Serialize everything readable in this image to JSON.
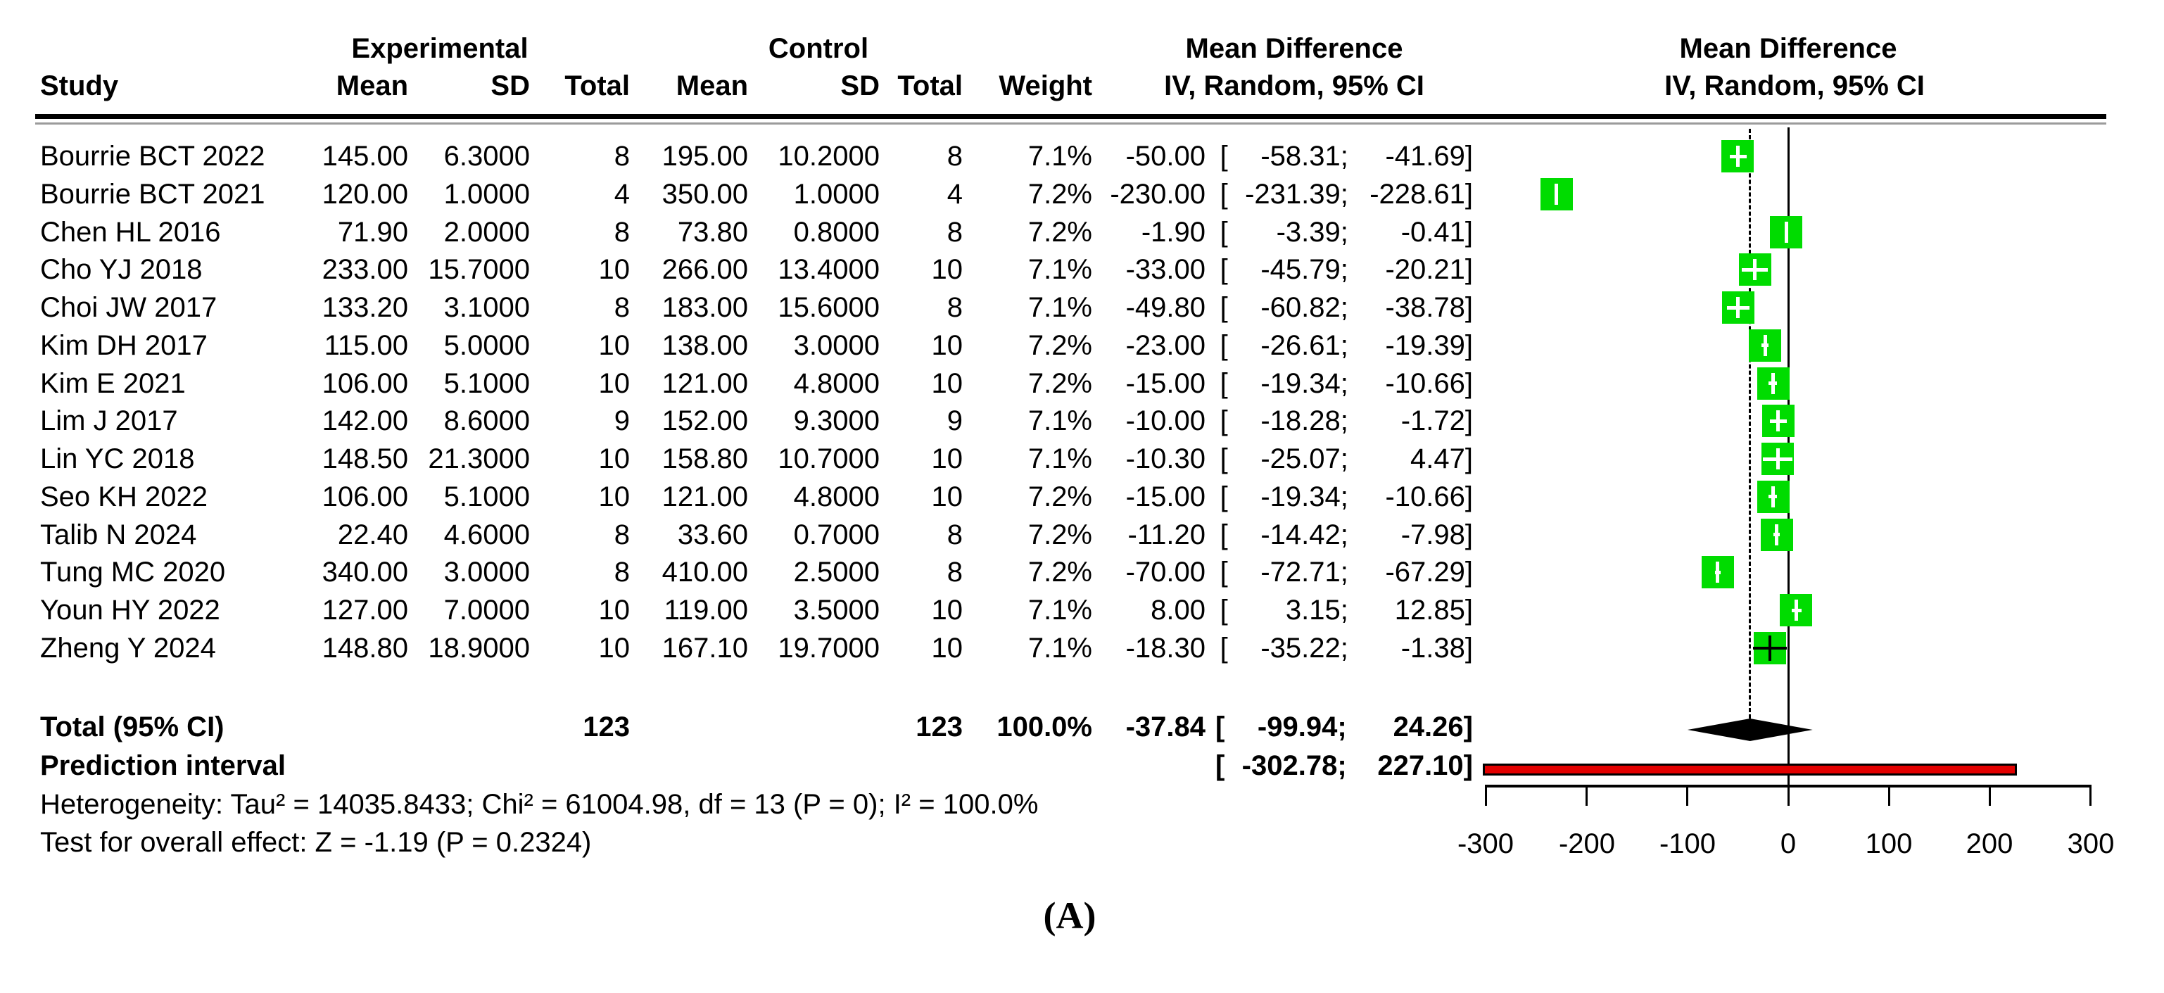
{
  "header": {
    "study": "Study",
    "experimental": "Experimental",
    "control": "Control",
    "mean": "Mean",
    "sd": "SD",
    "total": "Total",
    "weight": "Weight",
    "effect_title": "Mean Difference",
    "effect_method": "IV, Random, 95% CI"
  },
  "colors": {
    "square_green": "#00dc00",
    "prediction_red": "#e30000",
    "line_black": "#000000"
  },
  "chart_data": {
    "type": "forest",
    "effect_measure": "Mean Difference",
    "model": "IV, Random, 95% CI",
    "x_axis": {
      "lim": [
        -300,
        300
      ],
      "ticks": [
        -300,
        -200,
        -100,
        0,
        100,
        200,
        300
      ]
    },
    "zero_line": 0,
    "overall_estimate_line": -37.84,
    "studies": [
      {
        "name": "Bourrie BCT 2022",
        "exp_mean": "145.00",
        "exp_sd": "6.3000",
        "exp_total": "8",
        "ctrl_mean": "195.00",
        "ctrl_sd": "10.2000",
        "ctrl_total": "8",
        "weight": "7.1%",
        "md_text": "-50.00",
        "lo_text": "-58.31",
        "hi_text": "-41.69",
        "md": -50.0,
        "lo": -58.31,
        "hi": -41.69
      },
      {
        "name": "Bourrie BCT 2021",
        "exp_mean": "120.00",
        "exp_sd": "1.0000",
        "exp_total": "4",
        "ctrl_mean": "350.00",
        "ctrl_sd": "1.0000",
        "ctrl_total": "4",
        "weight": "7.2%",
        "md_text": "-230.00",
        "lo_text": "-231.39",
        "hi_text": "-228.61",
        "md": -230.0,
        "lo": -231.39,
        "hi": -228.61
      },
      {
        "name": "Chen HL 2016",
        "exp_mean": "71.90",
        "exp_sd": "2.0000",
        "exp_total": "8",
        "ctrl_mean": "73.80",
        "ctrl_sd": "0.8000",
        "ctrl_total": "8",
        "weight": "7.2%",
        "md_text": "-1.90",
        "lo_text": "-3.39",
        "hi_text": "-0.41",
        "md": -1.9,
        "lo": -3.39,
        "hi": -0.41
      },
      {
        "name": "Cho YJ 2018",
        "exp_mean": "233.00",
        "exp_sd": "15.7000",
        "exp_total": "10",
        "ctrl_mean": "266.00",
        "ctrl_sd": "13.4000",
        "ctrl_total": "10",
        "weight": "7.1%",
        "md_text": "-33.00",
        "lo_text": "-45.79",
        "hi_text": "-20.21",
        "md": -33.0,
        "lo": -45.79,
        "hi": -20.21
      },
      {
        "name": "Choi JW 2017",
        "exp_mean": "133.20",
        "exp_sd": "3.1000",
        "exp_total": "8",
        "ctrl_mean": "183.00",
        "ctrl_sd": "15.6000",
        "ctrl_total": "8",
        "weight": "7.1%",
        "md_text": "-49.80",
        "lo_text": "-60.82",
        "hi_text": "-38.78",
        "md": -49.8,
        "lo": -60.82,
        "hi": -38.78
      },
      {
        "name": "Kim DH 2017",
        "exp_mean": "115.00",
        "exp_sd": "5.0000",
        "exp_total": "10",
        "ctrl_mean": "138.00",
        "ctrl_sd": "3.0000",
        "ctrl_total": "10",
        "weight": "7.2%",
        "md_text": "-23.00",
        "lo_text": "-26.61",
        "hi_text": "-19.39",
        "md": -23.0,
        "lo": -26.61,
        "hi": -19.39
      },
      {
        "name": "Kim E 2021",
        "exp_mean": "106.00",
        "exp_sd": "5.1000",
        "exp_total": "10",
        "ctrl_mean": "121.00",
        "ctrl_sd": "4.8000",
        "ctrl_total": "10",
        "weight": "7.2%",
        "md_text": "-15.00",
        "lo_text": "-19.34",
        "hi_text": "-10.66",
        "md": -15.0,
        "lo": -19.34,
        "hi": -10.66
      },
      {
        "name": "Lim J 2017",
        "exp_mean": "142.00",
        "exp_sd": "8.6000",
        "exp_total": "9",
        "ctrl_mean": "152.00",
        "ctrl_sd": "9.3000",
        "ctrl_total": "9",
        "weight": "7.1%",
        "md_text": "-10.00",
        "lo_text": "-18.28",
        "hi_text": "-1.72",
        "md": -10.0,
        "lo": -18.28,
        "hi": -1.72
      },
      {
        "name": "Lin YC 2018",
        "exp_mean": "148.50",
        "exp_sd": "21.3000",
        "exp_total": "10",
        "ctrl_mean": "158.80",
        "ctrl_sd": "10.7000",
        "ctrl_total": "10",
        "weight": "7.1%",
        "md_text": "-10.30",
        "lo_text": "-25.07",
        "hi_text": "4.47",
        "md": -10.3,
        "lo": -25.07,
        "hi": 4.47
      },
      {
        "name": "Seo KH 2022",
        "exp_mean": "106.00",
        "exp_sd": "5.1000",
        "exp_total": "10",
        "ctrl_mean": "121.00",
        "ctrl_sd": "4.8000",
        "ctrl_total": "10",
        "weight": "7.2%",
        "md_text": "-15.00",
        "lo_text": "-19.34",
        "hi_text": "-10.66",
        "md": -15.0,
        "lo": -19.34,
        "hi": -10.66
      },
      {
        "name": "Talib N 2024",
        "exp_mean": "22.40",
        "exp_sd": "4.6000",
        "exp_total": "8",
        "ctrl_mean": "33.60",
        "ctrl_sd": "0.7000",
        "ctrl_total": "8",
        "weight": "7.2%",
        "md_text": "-11.20",
        "lo_text": "-14.42",
        "hi_text": "-7.98",
        "md": -11.2,
        "lo": -14.42,
        "hi": -7.98
      },
      {
        "name": "Tung MC 2020",
        "exp_mean": "340.00",
        "exp_sd": "3.0000",
        "exp_total": "8",
        "ctrl_mean": "410.00",
        "ctrl_sd": "2.5000",
        "ctrl_total": "8",
        "weight": "7.2%",
        "md_text": "-70.00",
        "lo_text": "-72.71",
        "hi_text": "-67.29",
        "md": -70.0,
        "lo": -72.71,
        "hi": -67.29
      },
      {
        "name": "Youn HY 2022",
        "exp_mean": "127.00",
        "exp_sd": "7.0000",
        "exp_total": "10",
        "ctrl_mean": "119.00",
        "ctrl_sd": "3.5000",
        "ctrl_total": "10",
        "weight": "7.1%",
        "md_text": "8.00",
        "lo_text": "3.15",
        "hi_text": "12.85",
        "md": 8.0,
        "lo": 3.15,
        "hi": 12.85
      },
      {
        "name": "Zheng Y 2024",
        "exp_mean": "148.80",
        "exp_sd": "18.9000",
        "exp_total": "10",
        "ctrl_mean": "167.10",
        "ctrl_sd": "19.7000",
        "ctrl_total": "10",
        "weight": "7.1%",
        "md_text": "-18.30",
        "lo_text": "-35.22",
        "hi_text": "-1.38",
        "md": -18.3,
        "lo": -35.22,
        "hi": -1.38
      }
    ],
    "total": {
      "label": "Total (95% CI)",
      "exp_total": "123",
      "ctrl_total": "123",
      "weight": "100.0%",
      "md_text": "-37.84",
      "lo_text": "-99.94",
      "hi_text": "24.26",
      "md": -37.84,
      "lo": -99.94,
      "hi": 24.26
    },
    "prediction": {
      "label": "Prediction interval",
      "lo_text": "-302.78",
      "hi_text": "227.10",
      "lo": -302.78,
      "hi": 227.1
    },
    "heterogeneity": "Heterogeneity: Tau² = 14035.8433; Chi² = 61004.98, df = 13 (P = 0); I² = 100.0%",
    "overall_effect_test": "Test for overall effect: Z = -1.19 (P = 0.2324)"
  },
  "caption": "(A)"
}
